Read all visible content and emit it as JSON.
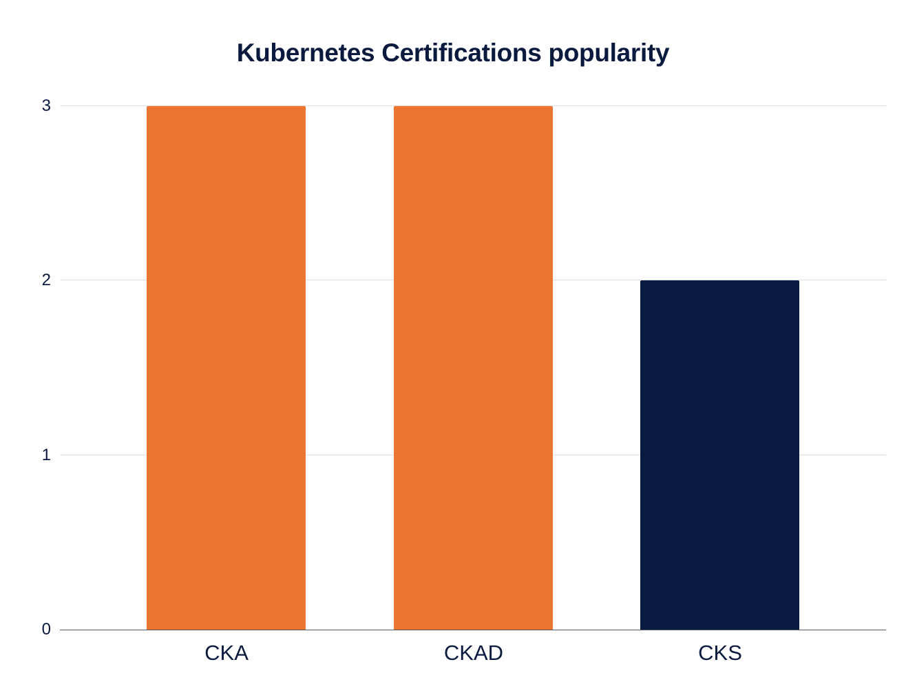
{
  "chart_data": {
    "type": "bar",
    "title": "Kubernetes Certifications popularity",
    "categories": [
      "CKA",
      "CKAD",
      "CKS"
    ],
    "values": [
      3,
      3,
      2
    ],
    "colors": [
      "#ec7532",
      "#ec7532",
      "#081a40"
    ],
    "xlabel": "",
    "ylabel": "",
    "ylim": [
      0,
      3
    ],
    "yticks": [
      "0",
      "1",
      "2",
      "3"
    ],
    "grid": true,
    "legend": null
  }
}
